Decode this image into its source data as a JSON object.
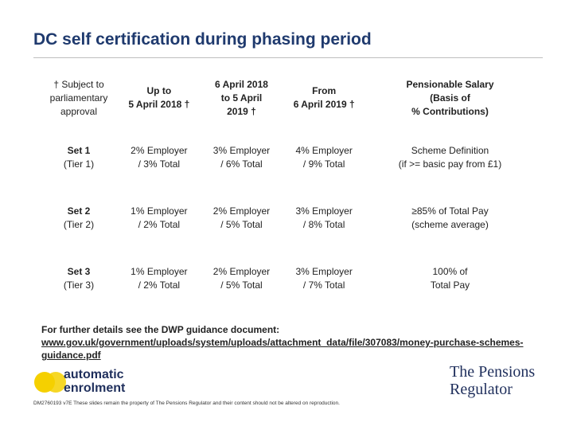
{
  "title": "DC self certification during phasing period",
  "table": {
    "header": [
      [
        "† Subject to",
        "parliamentary",
        "approval"
      ],
      [
        "Up to",
        "5 April 2018 †"
      ],
      [
        "6 April 2018",
        "to 5 April",
        "2019 †"
      ],
      [
        "From",
        "6 April 2019 †"
      ],
      [
        "Pensionable Salary",
        "(Basis of",
        "% Contributions)"
      ]
    ],
    "rows": [
      [
        [
          "Set 1",
          "(Tier 1)"
        ],
        [
          "2% Employer",
          "/ 3% Total"
        ],
        [
          "3% Employer",
          "/ 6% Total"
        ],
        [
          "4% Employer",
          "/ 9% Total"
        ],
        [
          "Scheme Definition",
          "(if >= basic pay from £1)"
        ]
      ],
      [
        [
          "Set 2",
          "(Tier 2)"
        ],
        [
          "1% Employer",
          "/ 2% Total"
        ],
        [
          "2% Employer",
          "/ 5% Total"
        ],
        [
          "3% Employer",
          "/ 8% Total"
        ],
        [
          "≥85% of Total Pay",
          "(scheme average)"
        ]
      ],
      [
        [
          "Set 3",
          "(Tier 3)"
        ],
        [
          "1% Employer",
          "/ 2% Total"
        ],
        [
          "2% Employer",
          "/ 5% Total"
        ],
        [
          "3% Employer",
          "/ 7% Total"
        ],
        [
          "100% of",
          "Total Pay"
        ]
      ]
    ]
  },
  "footer": {
    "intro": "For further details see the DWP guidance document:",
    "link": "www.gov.uk/government/uploads/system/uploads/attachment_data/file/307083/money-purchase-schemes-guidance.pdf"
  },
  "logos": {
    "auto_enrolment": [
      "automatic",
      "enrolment"
    ],
    "regulator": [
      "The Pensions",
      "Regulator"
    ]
  },
  "footnote": "DM2760193 v7E These slides remain the property of The Pensions Regulator and their content should not be altered on reproduction."
}
